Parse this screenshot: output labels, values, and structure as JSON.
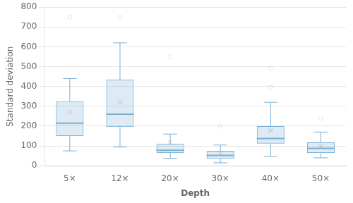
{
  "chart_data": {
    "type": "box",
    "categories": [
      "5×",
      "12×",
      "20×",
      "30×",
      "40×",
      "50×"
    ],
    "boxes": [
      {
        "whislo": 75,
        "q1": 150,
        "med": 215,
        "q3": 325,
        "whishi": 440,
        "mean": 270,
        "fliers": [
          750
        ]
      },
      {
        "whislo": 95,
        "q1": 195,
        "med": 260,
        "q3": 435,
        "whishi": 620,
        "mean": 320,
        "fliers": [
          750
        ]
      },
      {
        "whislo": 38,
        "q1": 65,
        "med": 78,
        "q3": 112,
        "whishi": 160,
        "mean": 118,
        "fliers": [
          550
        ]
      },
      {
        "whislo": 15,
        "q1": 35,
        "med": 52,
        "q3": 75,
        "whishi": 105,
        "mean": 62,
        "fliers": [
          200
        ]
      },
      {
        "whislo": 48,
        "q1": 112,
        "med": 138,
        "q3": 200,
        "whishi": 320,
        "mean": 178,
        "fliers": [
          395,
          490
        ]
      },
      {
        "whislo": 40,
        "q1": 65,
        "med": 88,
        "q3": 118,
        "whishi": 170,
        "mean": 98,
        "fliers": [
          240
        ]
      }
    ],
    "color": "#7BAFD4",
    "marker": "x",
    "ylim": [
      0,
      800
    ],
    "yticks": [
      0,
      100,
      200,
      300,
      400,
      500,
      600,
      700,
      800
    ],
    "ylabel": "Standard deviation",
    "xlabel": "Depth",
    "grid": true
  }
}
